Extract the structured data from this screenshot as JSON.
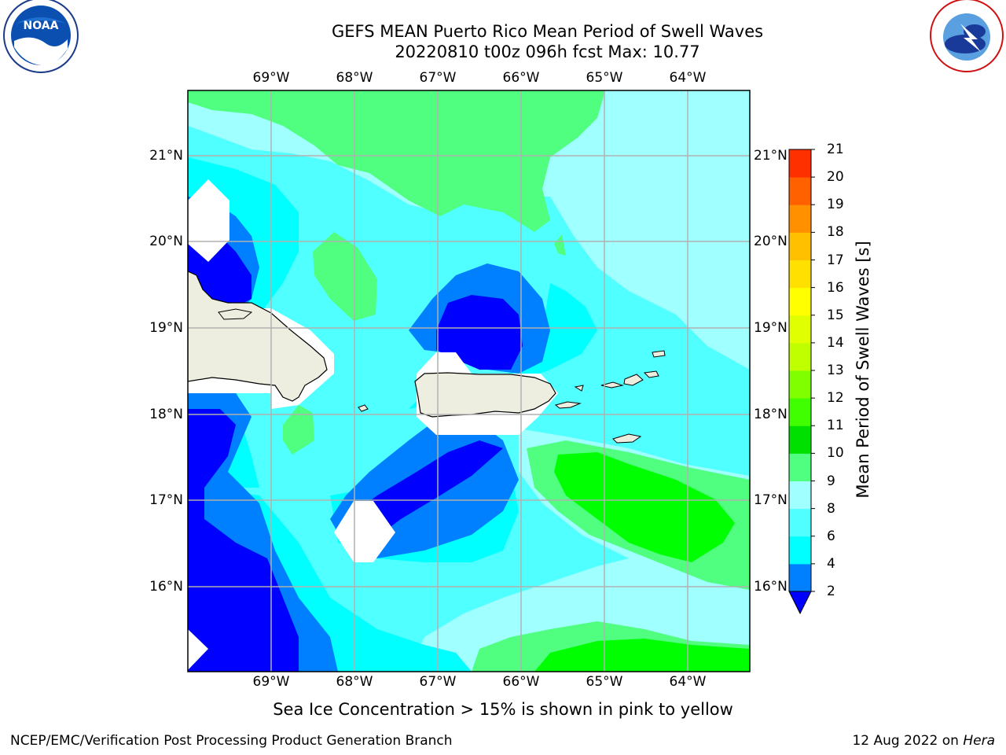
{
  "header": {
    "title_line1": "GEFS MEAN Puerto Rico Mean Period of Swell Waves",
    "title_line2": "20220810 t00z 096h fcst   Max: 10.77"
  },
  "logos": {
    "left": {
      "name": "noaa-logo",
      "text": "NOAA",
      "ring_text": "NATIONAL OCEANIC AND ATMOSPHERIC ADMINISTRATION · U.S. DEPARTMENT OF COMMERCE"
    },
    "right": {
      "name": "nws-logo",
      "ring_text": "NATIONAL WEATHER SERVICE"
    }
  },
  "map": {
    "lon_labels": [
      "69°W",
      "68°W",
      "67°W",
      "66°W",
      "65°W",
      "64°W"
    ],
    "lat_labels": [
      "21°N",
      "20°N",
      "19°N",
      "18°N",
      "17°N",
      "16°N"
    ],
    "colors": {
      "lt2": "#0000ff",
      "b2_4": "#0080ff",
      "b4_6": "#00ffff",
      "b6_8": "#50ffff",
      "b8_9": "#a0ffff",
      "b9_10": "#50ff80",
      "b10_11": "#00ff00",
      "land": "#eeeee0",
      "masked": "#ffffff",
      "grid": "#b0b0b0"
    }
  },
  "colorbar": {
    "title": "Mean Period of Swell Waves [s]",
    "ticks": [
      "21",
      "20",
      "19",
      "18",
      "17",
      "16",
      "15",
      "14",
      "13",
      "12",
      "11",
      "10",
      "9",
      "8",
      "6",
      "4",
      "2"
    ],
    "colors": [
      "#0080ff",
      "#00ffff",
      "#50ffff",
      "#a0ffff",
      "#50ff80",
      "#00e000",
      "#40ff00",
      "#80ff00",
      "#c0ff00",
      "#e0ff00",
      "#ffff00",
      "#ffe000",
      "#ffc000",
      "#ff9000",
      "#ff6000",
      "#ff3000",
      "#ff0000"
    ],
    "under_color": "#0000ff"
  },
  "ice_note": "Sea Ice Concentration > 15% is shown in pink to yellow",
  "footer": {
    "left": "NCEP/EMC/Verification Post Processing Product Generation Branch",
    "right_date": "12 Aug 2022 on ",
    "right_host": "Hera"
  }
}
